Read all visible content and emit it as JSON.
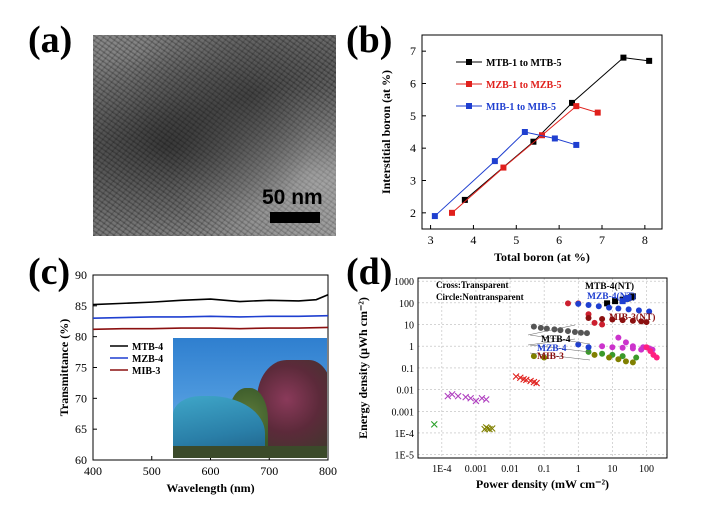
{
  "panels": {
    "a": "(a)",
    "b": "(b)",
    "c": "(c)",
    "d": "(d)"
  },
  "tem": {
    "scale_label": "50 nm"
  },
  "chart_data": [
    {
      "id": "b",
      "type": "line",
      "xlabel": "Total boron (at %)",
      "ylabel": "Interstitial boron (at %)",
      "xlim": [
        2.8,
        8.4
      ],
      "ylim": [
        1.5,
        7.5
      ],
      "xticks": [
        3,
        4,
        5,
        6,
        7,
        8
      ],
      "yticks": [
        2,
        3,
        4,
        5,
        6,
        7
      ],
      "legend": "top-left",
      "series": [
        {
          "name": "MTB-1 to MTB-5",
          "color": "#000000",
          "x": [
            3.8,
            5.4,
            6.3,
            7.5,
            8.1
          ],
          "y": [
            2.4,
            4.2,
            5.4,
            6.8,
            6.7
          ]
        },
        {
          "name": "MZB-1 to MZB-5",
          "color": "#e0201c",
          "x": [
            3.5,
            4.7,
            5.6,
            6.4,
            6.9
          ],
          "y": [
            2.0,
            3.4,
            4.4,
            5.3,
            5.1
          ]
        },
        {
          "name": "MIB-1 to MIB-5",
          "color": "#1f3fd0",
          "x": [
            3.1,
            4.5,
            5.2,
            5.9,
            6.4
          ],
          "y": [
            1.9,
            3.6,
            4.5,
            4.3,
            4.1
          ]
        }
      ]
    },
    {
      "id": "c",
      "type": "line",
      "xlabel": "Wavelength (nm)",
      "ylabel": "Transmittance (%)",
      "xlim": [
        400,
        800
      ],
      "ylim": [
        60,
        90
      ],
      "xticks": [
        400,
        500,
        600,
        700,
        800
      ],
      "yticks": [
        60,
        65,
        70,
        75,
        80,
        85,
        90
      ],
      "legend": "middle-left",
      "series": [
        {
          "name": "MTB-4",
          "color": "#000000",
          "x": [
            400,
            450,
            500,
            550,
            600,
            650,
            700,
            750,
            780,
            800
          ],
          "y": [
            85.2,
            85.4,
            85.6,
            85.9,
            86.1,
            85.7,
            85.9,
            85.8,
            86.0,
            86.8
          ]
        },
        {
          "name": "MZB-4",
          "color": "#1f3fd0",
          "x": [
            400,
            450,
            500,
            550,
            600,
            650,
            700,
            750,
            800
          ],
          "y": [
            83.0,
            83.1,
            83.2,
            83.2,
            83.3,
            83.2,
            83.3,
            83.3,
            83.4
          ]
        },
        {
          "name": "MIB-3",
          "color": "#8b1010",
          "x": [
            400,
            450,
            500,
            550,
            600,
            650,
            700,
            750,
            800
          ],
          "y": [
            81.2,
            81.3,
            81.3,
            81.4,
            81.4,
            81.3,
            81.4,
            81.4,
            81.5
          ]
        }
      ]
    },
    {
      "id": "d",
      "type": "scatter",
      "xscale": "log",
      "yscale": "log",
      "xlabel": "Power density (mW cm⁻²)",
      "ylabel": "Energy density (μWh cm⁻²)",
      "xlim": [
        2e-05,
        400
      ],
      "ylim": [
        7e-06,
        1400
      ],
      "xticks": [
        0.0001,
        0.001,
        0.01,
        0.1,
        1,
        10,
        100
      ],
      "xtick_labels": [
        "1E-4",
        "0.001",
        "0.01",
        "0.1",
        "1",
        "10",
        "100"
      ],
      "yticks": [
        1e-05,
        0.0001,
        0.001,
        0.01,
        0.1,
        1,
        10,
        100,
        1000
      ],
      "ytick_labels": [
        "1E-5",
        "1E-4",
        "0.001",
        "0.01",
        "0.1",
        "1",
        "10",
        "100",
        "1000"
      ],
      "grid": true,
      "notes": [
        "Cross:Transparent",
        "Circle:Nontransparent"
      ],
      "annotations": [
        {
          "text": "MTB-4(NT)",
          "color": "#000000"
        },
        {
          "text": "MZB-4(NT)",
          "color": "#1f3fd0"
        },
        {
          "text": "MIB-3(NT)",
          "color": "#8b1010"
        },
        {
          "text": "MTB-4",
          "color": "#000000"
        },
        {
          "text": "MZB-4",
          "color": "#1f3fd0"
        },
        {
          "text": "MIB-3",
          "color": "#8b1010"
        }
      ],
      "series": [
        {
          "marker": "square",
          "color": "#000000",
          "x": [
            7,
            12,
            20,
            28,
            35,
            40
          ],
          "y": [
            95,
            120,
            140,
            160,
            180,
            200
          ]
        },
        {
          "marker": "square",
          "color": "#1f3fd0",
          "x": [
            20,
            25,
            30
          ],
          "y": [
            120,
            150,
            170
          ]
        },
        {
          "marker": "circle",
          "color": "#cc1f2f",
          "x": [
            0.5,
            1,
            2,
            3,
            5
          ],
          "y": [
            95,
            95,
            30,
            12,
            10
          ]
        },
        {
          "marker": "circle",
          "color": "#1f3fd0",
          "x": [
            1,
            2,
            4,
            8,
            15,
            30,
            60,
            120
          ],
          "y": [
            90,
            80,
            70,
            60,
            55,
            50,
            45,
            40
          ]
        },
        {
          "marker": "circle",
          "color": "#8b1010",
          "x": [
            2,
            5,
            10,
            20,
            40,
            70,
            100
          ],
          "y": [
            20,
            18,
            17,
            16,
            15,
            14,
            13
          ]
        },
        {
          "marker": "circle",
          "color": "#555555",
          "x": [
            0.05,
            0.08,
            0.12,
            0.2,
            0.3,
            0.5,
            0.8,
            1.2,
            1.8
          ],
          "y": [
            8,
            7,
            6.5,
            6,
            5.5,
            5,
            4.5,
            4.2,
            4
          ]
        },
        {
          "marker": "circle",
          "color": "#cc33cc",
          "x": [
            15,
            25,
            40,
            80,
            120,
            150
          ],
          "y": [
            2.5,
            1.5,
            1.0,
            0.9,
            0.8,
            0.7
          ]
        },
        {
          "marker": "circle",
          "color": "#cc33cc",
          "x": [
            5,
            10,
            20,
            40,
            70
          ],
          "y": [
            1,
            0.9,
            0.85,
            0.8,
            0.7
          ]
        },
        {
          "marker": "circle",
          "color": "#3a9a2a",
          "x": [
            2,
            5,
            10,
            20,
            50
          ],
          "y": [
            0.55,
            0.45,
            0.4,
            0.35,
            0.3
          ]
        },
        {
          "marker": "circle",
          "color": "#808000",
          "x": [
            3,
            8,
            15,
            25,
            40
          ],
          "y": [
            0.4,
            0.3,
            0.25,
            0.2,
            0.18
          ]
        },
        {
          "marker": "circle",
          "color": "#ff2080",
          "x": [
            100,
            130,
            160,
            200
          ],
          "y": [
            0.9,
            0.6,
            0.4,
            0.3
          ]
        },
        {
          "marker": "circle",
          "color": "#1f3fd0",
          "x": [
            1,
            2
          ],
          "y": [
            1.2,
            0.9
          ]
        },
        {
          "marker": "circle",
          "color": "#808000",
          "x": [
            0.05,
            0.1
          ],
          "y": [
            0.35,
            0.3
          ]
        },
        {
          "marker": "cross",
          "color": "#e0201c",
          "x": [
            0.015,
            0.02,
            0.025,
            0.03,
            0.04,
            0.05,
            0.06
          ],
          "y": [
            0.04,
            0.035,
            0.03,
            0.028,
            0.025,
            0.022,
            0.02
          ]
        },
        {
          "marker": "cross",
          "color": "#b040c0",
          "x": [
            0.00015,
            0.0002,
            0.0003,
            0.0005,
            0.0007,
            0.001,
            0.0015,
            0.002
          ],
          "y": [
            0.005,
            0.006,
            0.005,
            0.0045,
            0.004,
            0.003,
            0.004,
            0.0035
          ]
        },
        {
          "marker": "cross",
          "color": "#808000",
          "x": [
            0.0018,
            0.002,
            0.0022,
            0.0025,
            0.003
          ],
          "y": [
            0.00015,
            0.00018,
            0.00016,
            0.00015,
            0.00016
          ]
        },
        {
          "marker": "cross",
          "color": "#2aa02a",
          "x": [
            6e-05
          ],
          "y": [
            0.00025
          ]
        }
      ]
    }
  ]
}
